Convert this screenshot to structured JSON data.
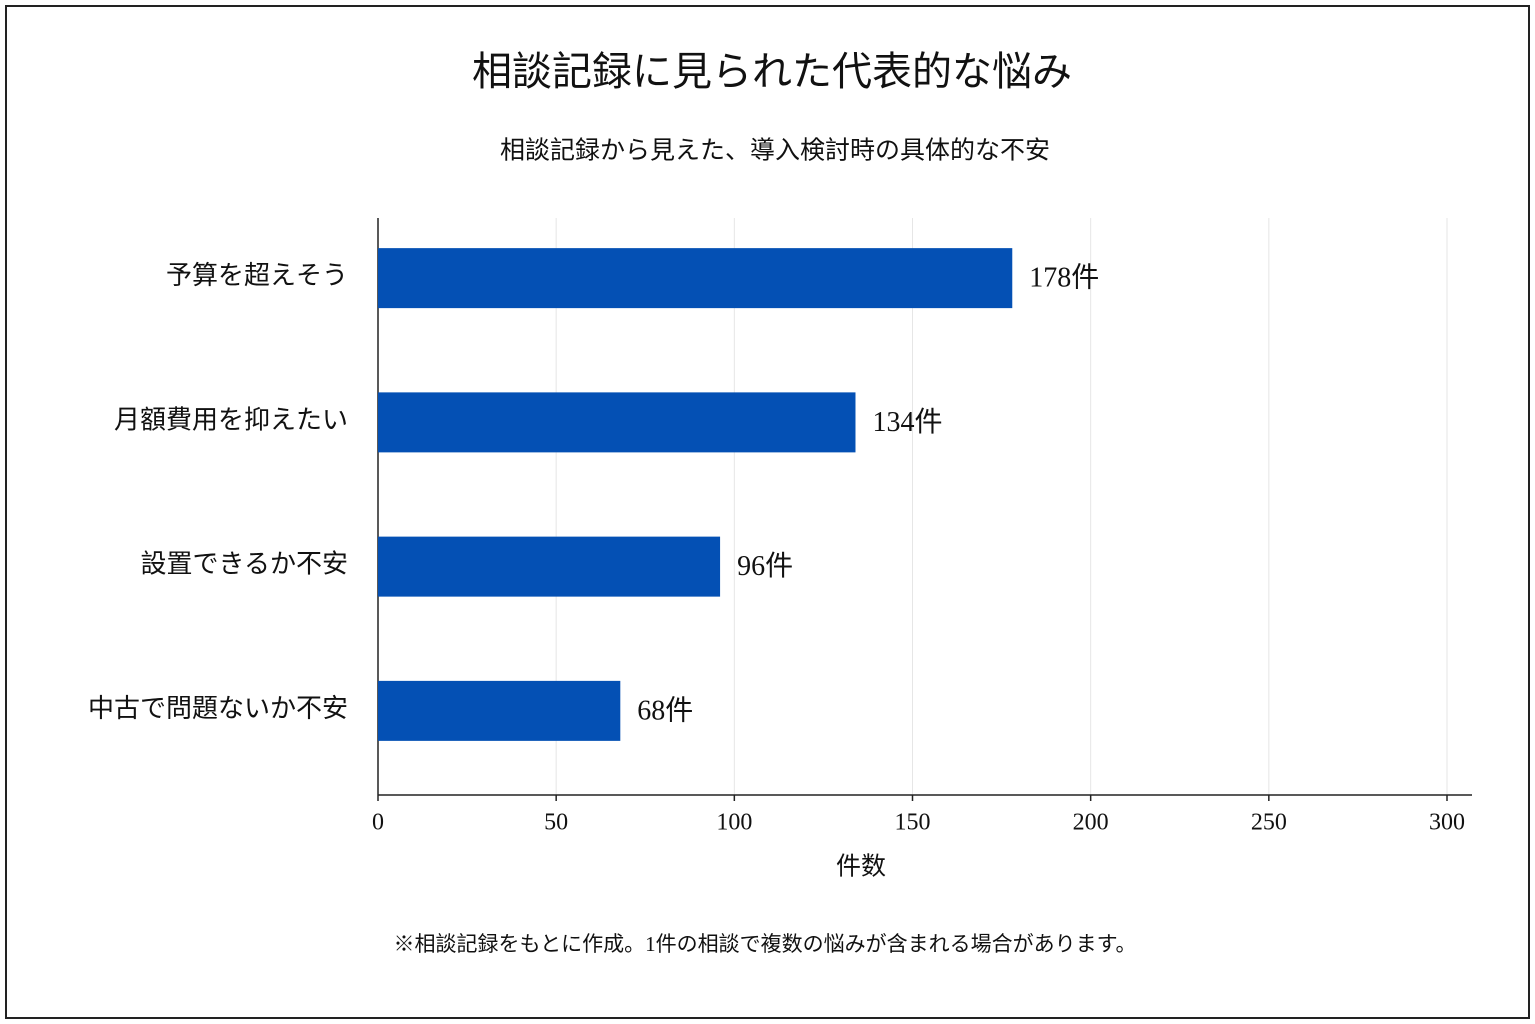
{
  "chart_data": {
    "type": "bar",
    "orientation": "horizontal",
    "title": "相談記録に見られた代表的な悩み",
    "subtitle": "相談記録から見えた、導入検討時の具体的な不安",
    "categories": [
      "予算を超えそう",
      "月額費用を抑えたい",
      "設置できるか不安",
      "中古で問題ないか不安"
    ],
    "values": [
      178,
      134,
      96,
      68
    ],
    "value_labels": [
      "178件",
      "134件",
      "96件",
      "68件"
    ],
    "color": "#0450b4",
    "xlabel": "件数",
    "xlim": [
      0,
      300
    ],
    "xticks": [
      0,
      50,
      100,
      150,
      200,
      250,
      300
    ],
    "grid": true,
    "footnote": "※相談記録をもとに作成。1件の相談で複数の悩みが含まれる場合があります。"
  }
}
